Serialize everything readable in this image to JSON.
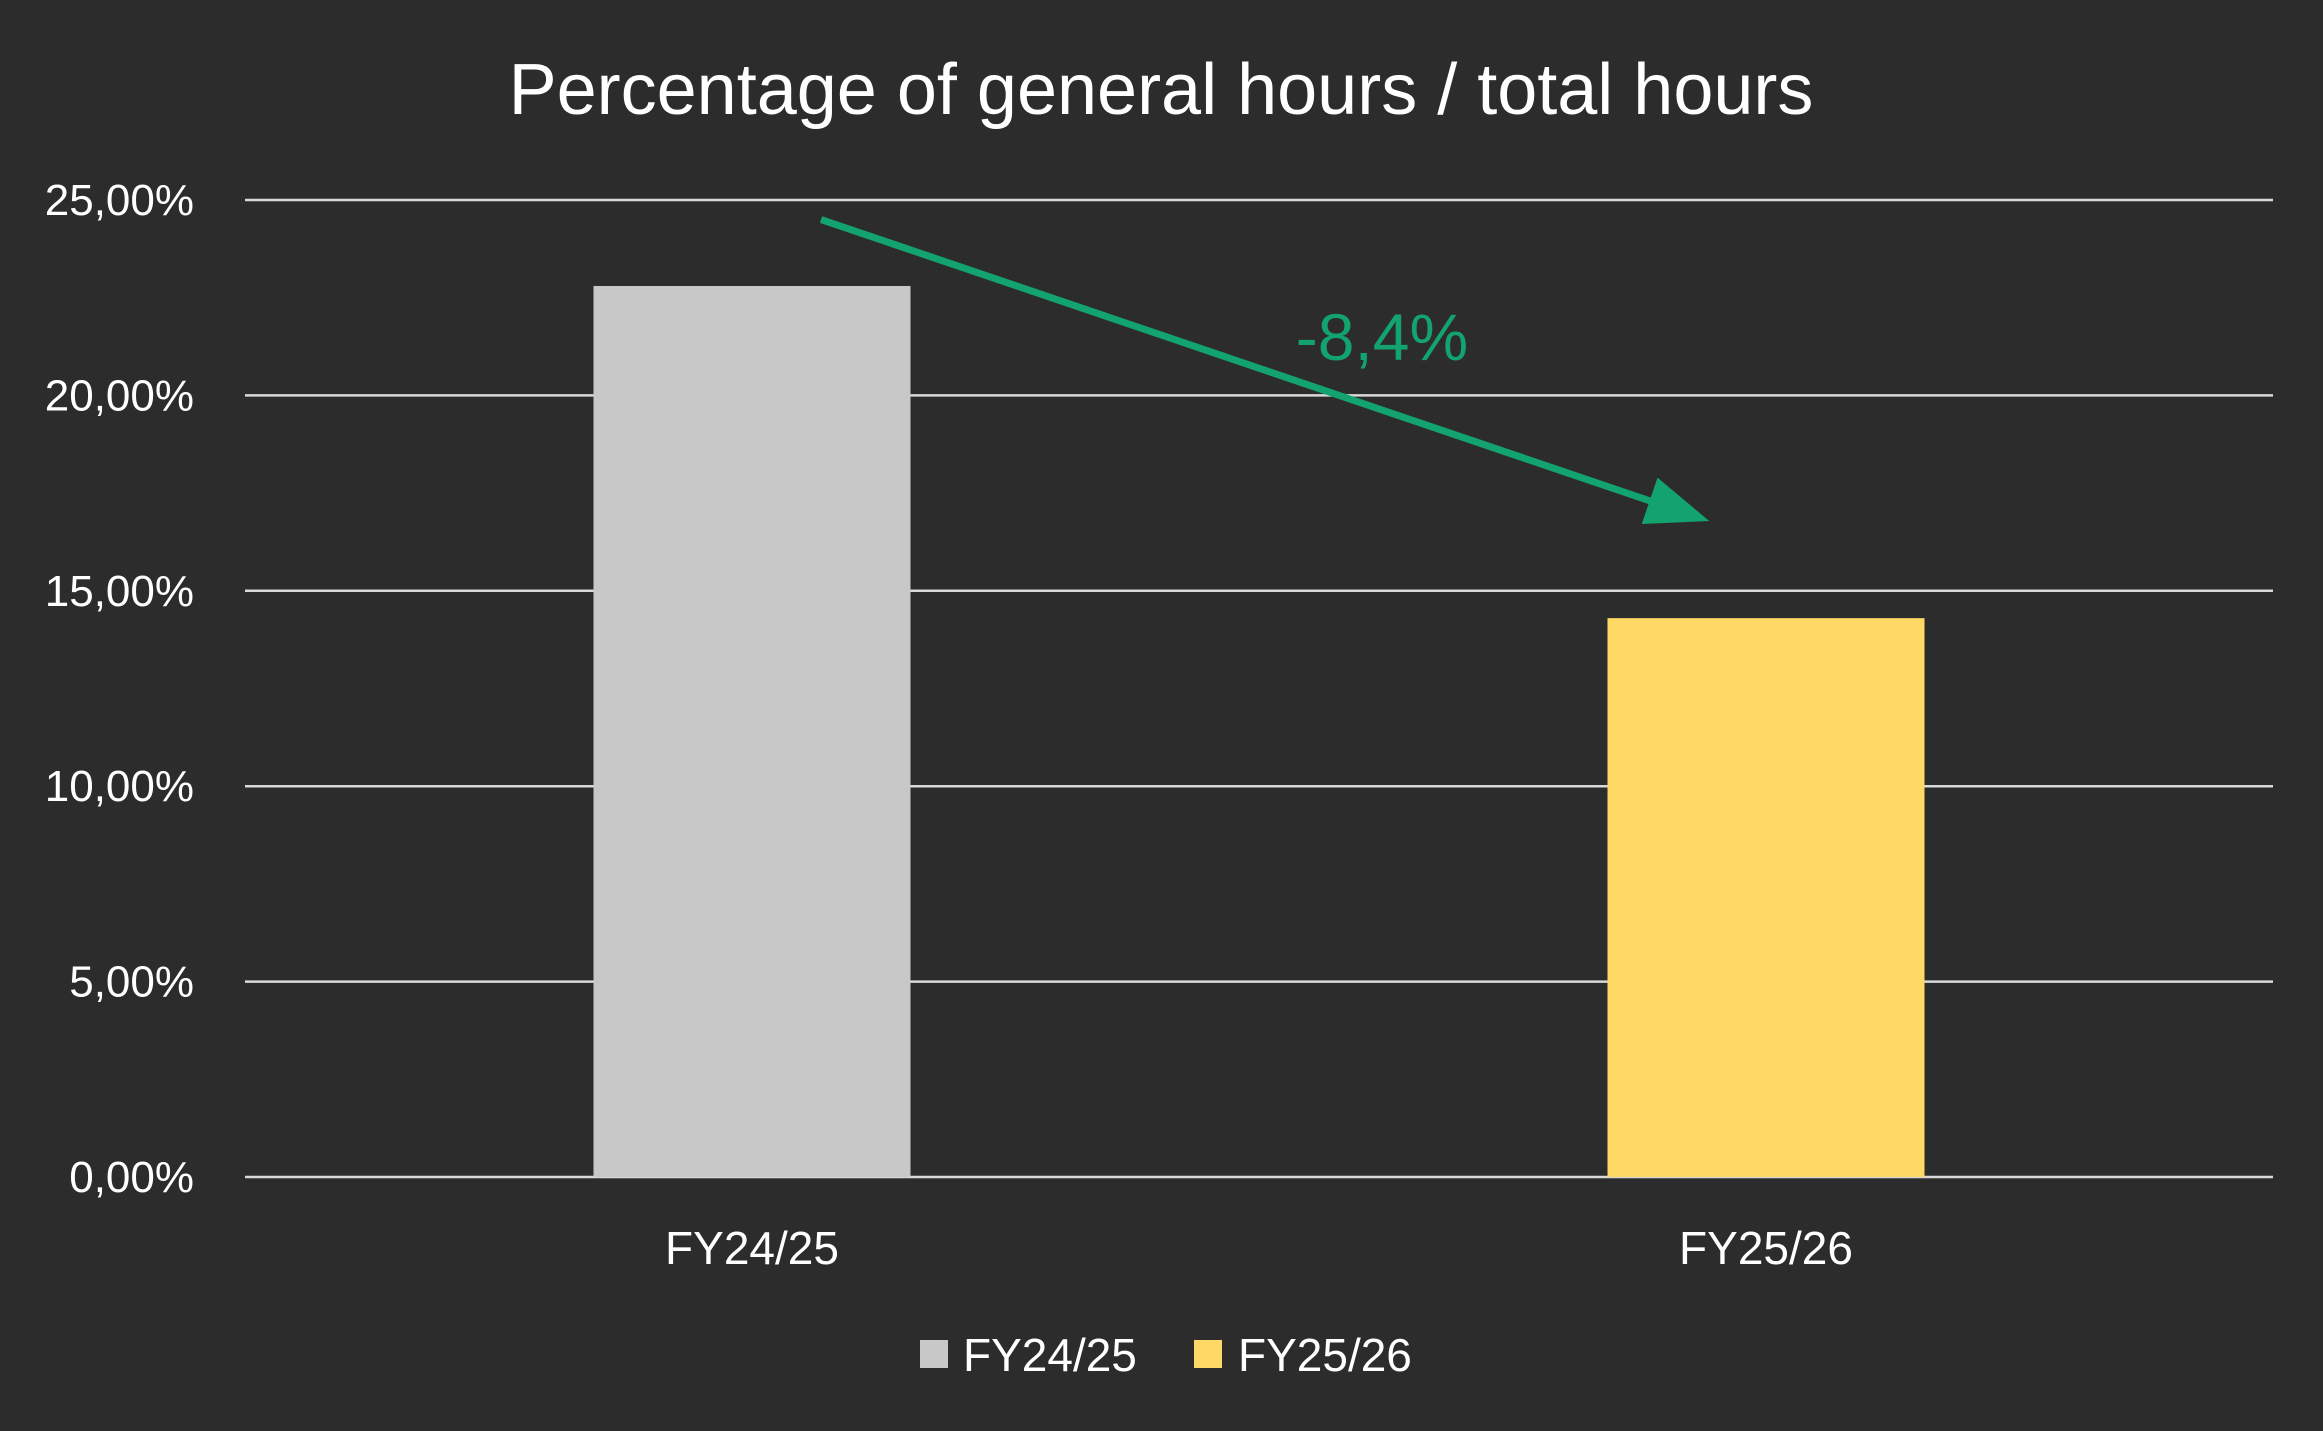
{
  "chart_data": {
    "type": "bar",
    "title": "Percentage of general hours / total hours",
    "categories": [
      "FY24/25",
      "FY25/26"
    ],
    "values": [
      22.8,
      14.3
    ],
    "colors": [
      "#c8c8c8",
      "#ffd966"
    ],
    "ylim": [
      0,
      25
    ],
    "yticks": [
      0,
      5,
      10,
      15,
      20,
      25
    ],
    "ytick_labels": [
      "0,00%",
      "5,00%",
      "10,00%",
      "15,00%",
      "20,00%",
      "25,00%"
    ],
    "grid": true,
    "gridline_color": "#d9d9d9",
    "legend": {
      "placement": "bottom",
      "entries": [
        {
          "label": "FY24/25",
          "color": "#c8c8c8"
        },
        {
          "label": "FY25/26",
          "color": "#ffd966"
        }
      ]
    },
    "annotation": {
      "text": "-8,4%",
      "color": "#12a36f",
      "arrow": {
        "from": {
          "x": "FY24/25",
          "y": 24.5
        },
        "to": {
          "x": "FY25/26",
          "y": 16.9
        }
      }
    },
    "background": "#2d2c2c"
  }
}
